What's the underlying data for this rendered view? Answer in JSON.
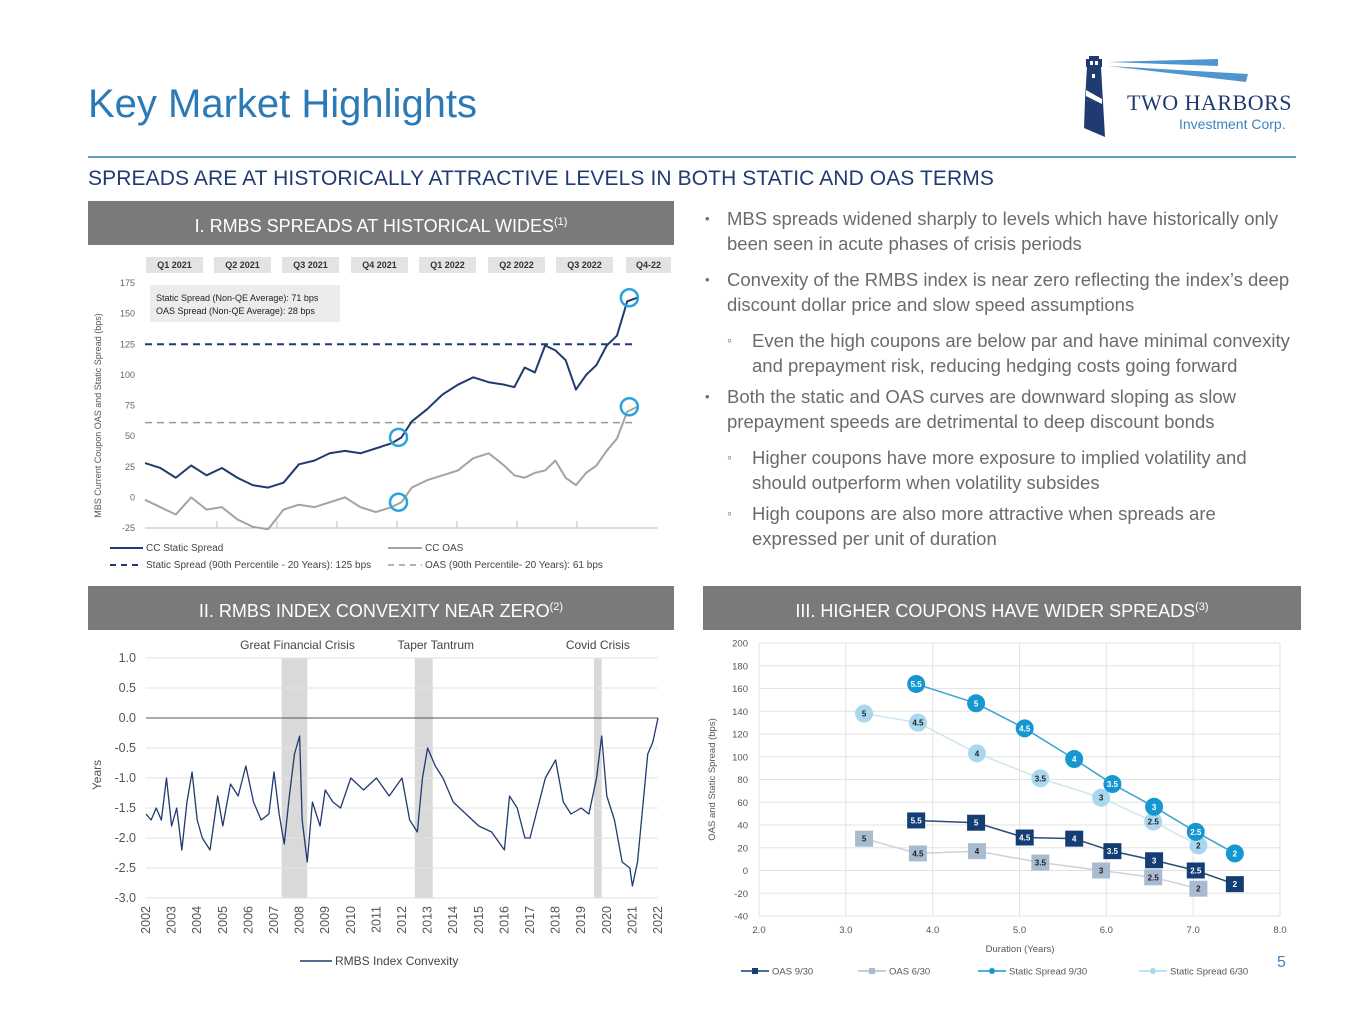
{
  "header": {
    "title": "Key Market Highlights",
    "subtitle": "SPREADS ARE AT HISTORICALLY ATTRACTIVE LEVELS IN BOTH STATIC AND OAS TERMS",
    "logo": {
      "icon": "lighthouse-icon",
      "name": "TWO HARBORS",
      "tagline": "Investment Corp."
    }
  },
  "colors": {
    "title_blue": "#2a7ab8",
    "navy": "#1f3b70",
    "panel_gray": "#7a7a7a",
    "static_930": "#1597d1",
    "static_630": "#a9d8ee",
    "oas_930": "#143e73",
    "oas_630": "#a9bbd1"
  },
  "panels": {
    "p1": {
      "label": "I. RMBS SPREADS AT HISTORICAL WIDES",
      "footnote": "(1)"
    },
    "p2": {
      "label": "II. RMBS INDEX CONVEXITY NEAR ZERO",
      "footnote": "(2)"
    },
    "p3": {
      "label": "III. HIGHER COUPONS HAVE WIDER SPREADS",
      "footnote": "(3)"
    }
  },
  "bullets": [
    {
      "level": 1,
      "text": "MBS spreads widened sharply to levels which have historically only been seen in acute phases of crisis periods"
    },
    {
      "level": 1,
      "text": "Convexity of the RMBS index is near zero reflecting the index’s deep discount dollar price and slow speed assumptions"
    },
    {
      "level": 2,
      "text": "Even the high coupons are below par and have minimal convexity and prepayment risk, reducing hedging costs going forward"
    },
    {
      "level": 1,
      "text": "Both the static and OAS curves are downward sloping as slow prepayment speeds are detrimental to deep discount bonds"
    },
    {
      "level": 2,
      "text": "Higher coupons have more exposure to implied volatility and should outperform when volatility subsides"
    },
    {
      "level": 2,
      "text": "High coupons are also more attractive when spreads are expressed per unit of duration"
    }
  ],
  "page_number": "5",
  "chart_data": [
    {
      "id": "spreads",
      "type": "line",
      "title": "I. RMBS SPREADS AT HISTORICAL WIDES",
      "ylabel": "MBS Current Coupon OAS and Static Spread (bps)",
      "xlabel": "",
      "ylim": [
        -25,
        175
      ],
      "yticks": [
        175,
        150,
        125,
        100,
        75,
        50,
        25,
        0,
        -25
      ],
      "categories": [
        "Q1 2021",
        "Q2 2021",
        "Q3 2021",
        "Q4 2021",
        "Q1 2022",
        "Q2 2022",
        "Q3 2022",
        "Q4-22"
      ],
      "annotation": [
        "Static Spread (Non-QE Average): 71 bps",
        "OAS Spread (Non-QE Average): 28 bps"
      ],
      "reference_lines": [
        {
          "name": "Static Spread (90th Percentile - 20 Years): 125 bps",
          "value": 125,
          "style": "dashed-navy"
        },
        {
          "name": "OAS (90th Percentile- 20 Years): 61 bps",
          "value": 61,
          "style": "dashed-gray"
        }
      ],
      "highlight_points": [
        {
          "series": "CC Static Spread",
          "x": 0.5,
          "y": 49
        },
        {
          "series": "CC OAS",
          "x": 0.5,
          "y": -4
        },
        {
          "series": "CC Static Spread",
          "x": 0.95,
          "y": 163
        },
        {
          "series": "CC OAS",
          "x": 0.95,
          "y": 74
        }
      ],
      "x_range": [
        0,
        1
      ],
      "series": [
        {
          "name": "CC Static Spread",
          "color": "#1f3b70",
          "x": [
            0,
            0.03,
            0.06,
            0.09,
            0.12,
            0.15,
            0.18,
            0.21,
            0.24,
            0.27,
            0.3,
            0.33,
            0.36,
            0.39,
            0.42,
            0.45,
            0.48,
            0.5,
            0.52,
            0.55,
            0.58,
            0.61,
            0.64,
            0.67,
            0.7,
            0.72,
            0.74,
            0.76,
            0.78,
            0.8,
            0.82,
            0.84,
            0.86,
            0.88,
            0.9,
            0.92,
            0.94,
            0.96
          ],
          "values": [
            28,
            24,
            16,
            26,
            18,
            24,
            16,
            10,
            8,
            12,
            27,
            30,
            36,
            38,
            36,
            40,
            44,
            49,
            62,
            72,
            84,
            92,
            98,
            94,
            92,
            90,
            106,
            102,
            124,
            120,
            112,
            88,
            100,
            108,
            124,
            132,
            160,
            163
          ]
        },
        {
          "name": "CC OAS",
          "color": "#a3a3a3",
          "x": [
            0,
            0.03,
            0.06,
            0.09,
            0.12,
            0.15,
            0.18,
            0.21,
            0.24,
            0.27,
            0.3,
            0.33,
            0.36,
            0.39,
            0.42,
            0.45,
            0.48,
            0.5,
            0.52,
            0.55,
            0.58,
            0.61,
            0.64,
            0.67,
            0.7,
            0.72,
            0.74,
            0.76,
            0.78,
            0.8,
            0.82,
            0.84,
            0.86,
            0.88,
            0.9,
            0.92,
            0.94,
            0.96
          ],
          "values": [
            -2,
            -8,
            -14,
            0,
            -10,
            -8,
            -18,
            -24,
            -26,
            -10,
            -6,
            -8,
            -4,
            0,
            -8,
            -12,
            -8,
            -4,
            8,
            14,
            18,
            22,
            32,
            36,
            26,
            18,
            16,
            20,
            22,
            30,
            16,
            10,
            20,
            26,
            38,
            48,
            70,
            74
          ]
        }
      ]
    },
    {
      "id": "convexity",
      "type": "line",
      "title": "II. RMBS INDEX CONVEXITY NEAR ZERO",
      "ylabel": "Years",
      "xlabel": "",
      "ylim": [
        -3.0,
        1.0
      ],
      "yticks": [
        "1.0",
        "0.5",
        "0.0",
        "-0.5",
        "-1.0",
        "-1.5",
        "-2.0",
        "-2.5",
        "-3.0"
      ],
      "xticks": [
        "2002",
        "2003",
        "2004",
        "2005",
        "2006",
        "2007",
        "2008",
        "2009",
        "2010",
        "2011",
        "2012",
        "2013",
        "2014",
        "2015",
        "2016",
        "2017",
        "2018",
        "2019",
        "2020",
        "2021",
        "2022"
      ],
      "xlim": [
        2002,
        2022
      ],
      "shaded_periods": [
        {
          "label": "Great Financial Crisis",
          "start": 2007.3,
          "end": 2008.3
        },
        {
          "label": "Taper Tantrum",
          "start": 2012.5,
          "end": 2013.2
        },
        {
          "label": "Covid Crisis",
          "start": 2019.5,
          "end": 2019.8
        }
      ],
      "legend": "RMBS Index Convexity",
      "series": [
        {
          "name": "RMBS Index Convexity",
          "color": "#1f3b70",
          "x": [
            2002.0,
            2002.2,
            2002.4,
            2002.6,
            2002.8,
            2003.0,
            2003.2,
            2003.4,
            2003.6,
            2003.8,
            2004.0,
            2004.2,
            2004.5,
            2004.8,
            2005.0,
            2005.3,
            2005.6,
            2005.9,
            2006.2,
            2006.5,
            2006.8,
            2007.0,
            2007.2,
            2007.4,
            2007.6,
            2007.8,
            2008.0,
            2008.1,
            2008.3,
            2008.5,
            2008.8,
            2009.0,
            2009.3,
            2009.6,
            2010.0,
            2010.5,
            2011.0,
            2011.5,
            2012.0,
            2012.3,
            2012.6,
            2012.8,
            2013.0,
            2013.3,
            2013.6,
            2014.0,
            2014.5,
            2015.0,
            2015.5,
            2016.0,
            2016.2,
            2016.5,
            2016.8,
            2017.0,
            2017.3,
            2017.6,
            2018.0,
            2018.3,
            2018.6,
            2019.0,
            2019.3,
            2019.6,
            2019.8,
            2020.0,
            2020.3,
            2020.6,
            2020.9,
            2021.0,
            2021.2,
            2021.4,
            2021.6,
            2021.8,
            2022.0
          ],
          "values": [
            -1.6,
            -1.7,
            -1.5,
            -1.7,
            -1.0,
            -1.8,
            -1.5,
            -2.2,
            -1.4,
            -0.9,
            -1.7,
            -2.0,
            -2.2,
            -1.3,
            -1.8,
            -1.1,
            -1.3,
            -0.8,
            -1.4,
            -1.7,
            -1.6,
            -0.9,
            -1.6,
            -2.1,
            -1.3,
            -0.6,
            -0.3,
            -1.7,
            -2.4,
            -1.4,
            -1.8,
            -1.2,
            -1.4,
            -1.5,
            -1.0,
            -1.2,
            -1.0,
            -1.3,
            -1.0,
            -1.7,
            -1.9,
            -1.0,
            -0.5,
            -0.8,
            -1.0,
            -1.4,
            -1.6,
            -1.8,
            -1.9,
            -2.2,
            -1.3,
            -1.5,
            -2.0,
            -2.0,
            -1.5,
            -1.0,
            -0.7,
            -1.4,
            -1.6,
            -1.5,
            -1.6,
            -1.0,
            -0.3,
            -1.3,
            -1.7,
            -2.4,
            -2.5,
            -2.8,
            -2.4,
            -1.5,
            -0.6,
            -0.4,
            0.0
          ]
        }
      ]
    },
    {
      "id": "coupons",
      "type": "scatter",
      "title": "III. HIGHER COUPONS HAVE WIDER SPREADS",
      "xlabel": "Duration (Years)",
      "ylabel": "OAS and Static Spread (bps)",
      "xlim": [
        2.0,
        8.0
      ],
      "ylim": [
        -40,
        200
      ],
      "xticks": [
        "2.0",
        "3.0",
        "4.0",
        "5.0",
        "6.0",
        "7.0",
        "8.0"
      ],
      "yticks": [
        "200",
        "180",
        "160",
        "140",
        "120",
        "100",
        "80",
        "60",
        "40",
        "20",
        "0",
        "-20",
        "-40"
      ],
      "grid": true,
      "legend_position": "bottom",
      "series": [
        {
          "name": "OAS 9/30",
          "marker": "square",
          "color": "#143e73",
          "line": "#2e4c73",
          "label_color": "#ffffff",
          "points": [
            {
              "x": 3.81,
              "y": 44,
              "label": "5.5"
            },
            {
              "x": 4.5,
              "y": 42,
              "label": "5"
            },
            {
              "x": 5.06,
              "y": 29,
              "label": "4.5"
            },
            {
              "x": 5.63,
              "y": 28,
              "label": "4"
            },
            {
              "x": 6.07,
              "y": 17,
              "label": "3.5"
            },
            {
              "x": 6.55,
              "y": 9,
              "label": "3"
            },
            {
              "x": 7.03,
              "y": 0,
              "label": "2.5"
            },
            {
              "x": 7.48,
              "y": -12,
              "label": "2"
            }
          ]
        },
        {
          "name": "OAS 6/30",
          "marker": "square",
          "color": "#a9bbd1",
          "line": "#c9d3de",
          "label_color": "#222222",
          "points": [
            {
              "x": 3.21,
              "y": 28,
              "label": "5"
            },
            {
              "x": 3.83,
              "y": 15,
              "label": "4.5"
            },
            {
              "x": 4.51,
              "y": 17,
              "label": "4"
            },
            {
              "x": 5.24,
              "y": 7,
              "label": "3.5"
            },
            {
              "x": 5.94,
              "y": 0,
              "label": "3"
            },
            {
              "x": 6.54,
              "y": -6,
              "label": "2.5"
            },
            {
              "x": 7.06,
              "y": -16,
              "label": "2"
            }
          ]
        },
        {
          "name": "Static Spread 9/30",
          "marker": "circle",
          "color": "#1597d1",
          "line": "#3aa3d3",
          "label_color": "#ffffff",
          "points": [
            {
              "x": 3.81,
              "y": 164,
              "label": "5.5"
            },
            {
              "x": 4.5,
              "y": 147,
              "label": "5"
            },
            {
              "x": 5.06,
              "y": 125,
              "label": "4.5"
            },
            {
              "x": 5.63,
              "y": 98,
              "label": "4"
            },
            {
              "x": 6.07,
              "y": 76,
              "label": "3.5"
            },
            {
              "x": 6.55,
              "y": 56,
              "label": "3"
            },
            {
              "x": 7.03,
              "y": 34,
              "label": "2.5"
            },
            {
              "x": 7.48,
              "y": 15,
              "label": "2"
            }
          ]
        },
        {
          "name": "Static Spread 6/30",
          "marker": "circle",
          "color": "#a9d8ee",
          "line": "#cfe6f2",
          "label_color": "#222222",
          "points": [
            {
              "x": 3.21,
              "y": 138,
              "label": "5"
            },
            {
              "x": 3.83,
              "y": 130,
              "label": "4.5"
            },
            {
              "x": 4.51,
              "y": 103,
              "label": "4"
            },
            {
              "x": 5.24,
              "y": 81,
              "label": "3.5"
            },
            {
              "x": 5.94,
              "y": 64,
              "label": "3"
            },
            {
              "x": 6.54,
              "y": 43,
              "label": "2.5"
            },
            {
              "x": 7.06,
              "y": 22,
              "label": "2"
            }
          ]
        }
      ]
    }
  ]
}
